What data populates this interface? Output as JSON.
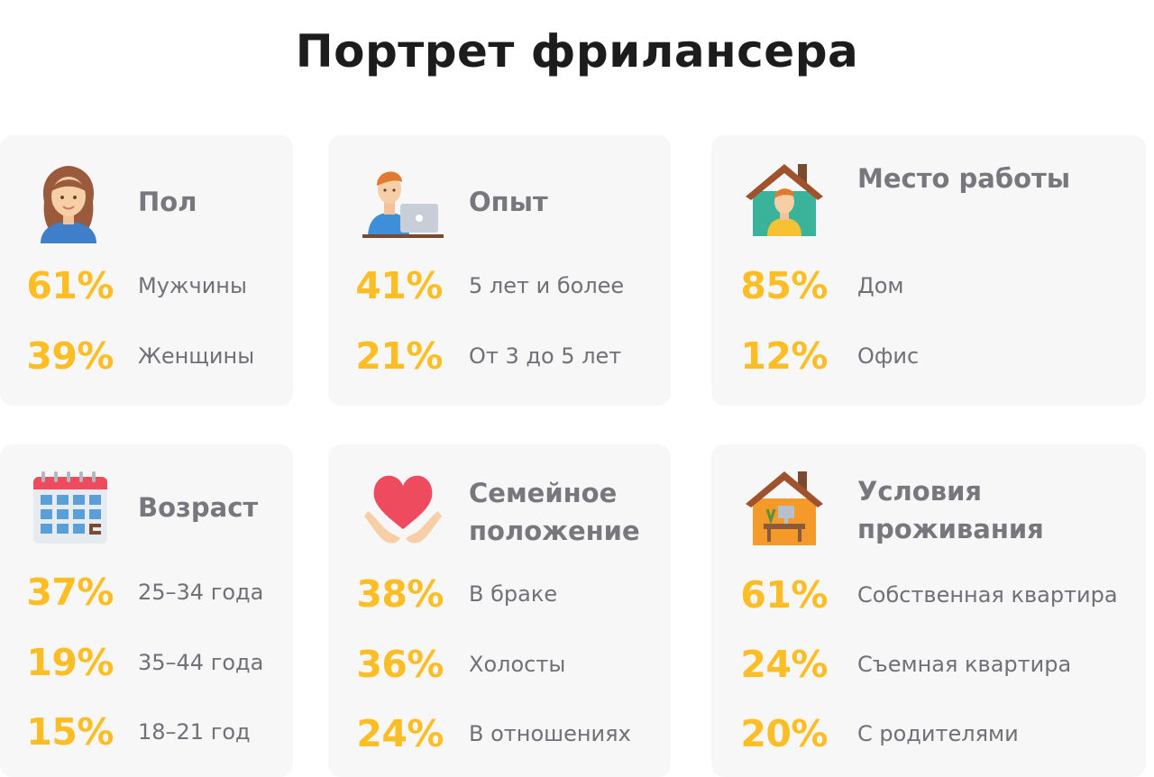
{
  "title": "Портрет фрилансера",
  "colors": {
    "accent": "#fdbd25",
    "card_bg": "#f7f7f7",
    "label": "#707078",
    "card_title": "#77777d",
    "page_title": "#1c1c1c"
  },
  "cards": [
    {
      "icon": "woman-avatar-icon",
      "title": "Пол",
      "stats": [
        {
          "value": "61%",
          "label": "Мужчины"
        },
        {
          "value": "39%",
          "label": "Женщины"
        }
      ]
    },
    {
      "icon": "man-laptop-icon",
      "title": "Опыт",
      "stats": [
        {
          "value": "41%",
          "label": "5 лет и более"
        },
        {
          "value": "21%",
          "label": "От 3 до 5 лет"
        }
      ]
    },
    {
      "icon": "house-person-icon",
      "title": "Место работы",
      "stats": [
        {
          "value": "85%",
          "label": "Дом"
        },
        {
          "value": "12%",
          "label": "Офис"
        }
      ]
    },
    {
      "icon": "calendar-icon",
      "title": "Возраст",
      "stats": [
        {
          "value": "37%",
          "label": "25–34 года"
        },
        {
          "value": "19%",
          "label": "35–44 года"
        },
        {
          "value": "15%",
          "label": "18–21 год"
        }
      ]
    },
    {
      "icon": "heart-hands-icon",
      "title": "Семейное положение",
      "stats": [
        {
          "value": "38%",
          "label": "В браке"
        },
        {
          "value": "36%",
          "label": "Холосты"
        },
        {
          "value": "24%",
          "label": "В отношениях"
        }
      ]
    },
    {
      "icon": "house-desk-icon",
      "title": "Условия проживания",
      "stats": [
        {
          "value": "61%",
          "label": "Собственная квартира"
        },
        {
          "value": "24%",
          "label": "Съемная квартира"
        },
        {
          "value": "20%",
          "label": "С родителями"
        }
      ]
    }
  ]
}
